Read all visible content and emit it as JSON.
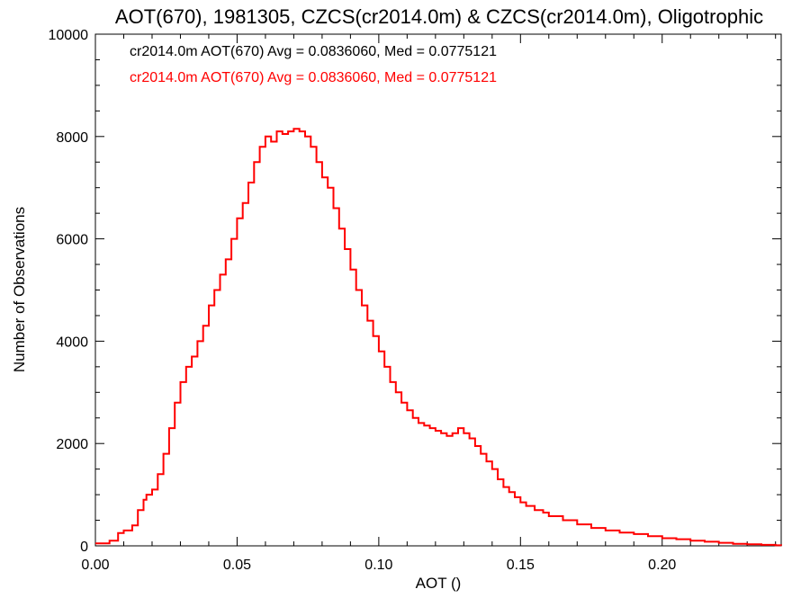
{
  "chart_data": {
    "type": "line",
    "title": "AOT(670), 1981305, CZCS(cr2014.0m) & CZCS(cr2014.0m), Oligotrophic",
    "xlabel": "AOT ()",
    "ylabel": "Number of Observations",
    "xlim": [
      0.0,
      0.242
    ],
    "ylim": [
      0,
      10000
    ],
    "x_ticks": [
      0.0,
      0.05,
      0.1,
      0.15,
      0.2
    ],
    "x_tick_labels": [
      "0.00",
      "0.05",
      "0.10",
      "0.15",
      "0.20"
    ],
    "y_ticks": [
      0,
      2000,
      4000,
      6000,
      8000,
      10000
    ],
    "y_tick_labels": [
      "0",
      "2000",
      "4000",
      "6000",
      "8000",
      "10000"
    ],
    "grid": false,
    "annotations": [
      {
        "text": "cr2014.0m AOT(670) Avg = 0.0836060, Med = 0.0775121",
        "color": "#000000"
      },
      {
        "text": "cr2014.0m AOT(670) Avg = 0.0836060, Med = 0.0775121",
        "color": "#ff0000"
      }
    ],
    "series": [
      {
        "color": "#ff0000",
        "step": true,
        "x": [
          0.0,
          0.005,
          0.008,
          0.01,
          0.013,
          0.015,
          0.017,
          0.018,
          0.02,
          0.022,
          0.024,
          0.026,
          0.028,
          0.03,
          0.032,
          0.034,
          0.036,
          0.038,
          0.04,
          0.042,
          0.044,
          0.046,
          0.048,
          0.05,
          0.052,
          0.054,
          0.056,
          0.058,
          0.06,
          0.062,
          0.064,
          0.066,
          0.068,
          0.07,
          0.072,
          0.074,
          0.076,
          0.078,
          0.08,
          0.082,
          0.084,
          0.086,
          0.088,
          0.09,
          0.092,
          0.094,
          0.096,
          0.098,
          0.1,
          0.102,
          0.104,
          0.106,
          0.108,
          0.11,
          0.112,
          0.114,
          0.116,
          0.118,
          0.12,
          0.122,
          0.124,
          0.126,
          0.128,
          0.13,
          0.132,
          0.134,
          0.136,
          0.138,
          0.14,
          0.142,
          0.144,
          0.146,
          0.148,
          0.15,
          0.152,
          0.155,
          0.158,
          0.16,
          0.165,
          0.17,
          0.175,
          0.18,
          0.185,
          0.19,
          0.195,
          0.2,
          0.205,
          0.21,
          0.215,
          0.22,
          0.225,
          0.23,
          0.235,
          0.24,
          0.242
        ],
        "y": [
          50,
          100,
          250,
          300,
          400,
          700,
          900,
          1000,
          1100,
          1400,
          1800,
          2300,
          2800,
          3200,
          3500,
          3700,
          4000,
          4300,
          4700,
          5000,
          5300,
          5600,
          6000,
          6400,
          6700,
          7100,
          7500,
          7800,
          8000,
          7900,
          8100,
          8050,
          8100,
          8150,
          8100,
          8000,
          7800,
          7500,
          7200,
          7000,
          6600,
          6200,
          5800,
          5400,
          5000,
          4700,
          4400,
          4100,
          3800,
          3500,
          3200,
          3000,
          2800,
          2650,
          2500,
          2400,
          2350,
          2300,
          2250,
          2200,
          2150,
          2200,
          2300,
          2200,
          2100,
          1950,
          1800,
          1650,
          1500,
          1300,
          1150,
          1050,
          950,
          850,
          780,
          700,
          650,
          580,
          500,
          420,
          350,
          300,
          260,
          230,
          190,
          150,
          130,
          100,
          80,
          60,
          40,
          30,
          20,
          10,
          5
        ]
      }
    ]
  }
}
